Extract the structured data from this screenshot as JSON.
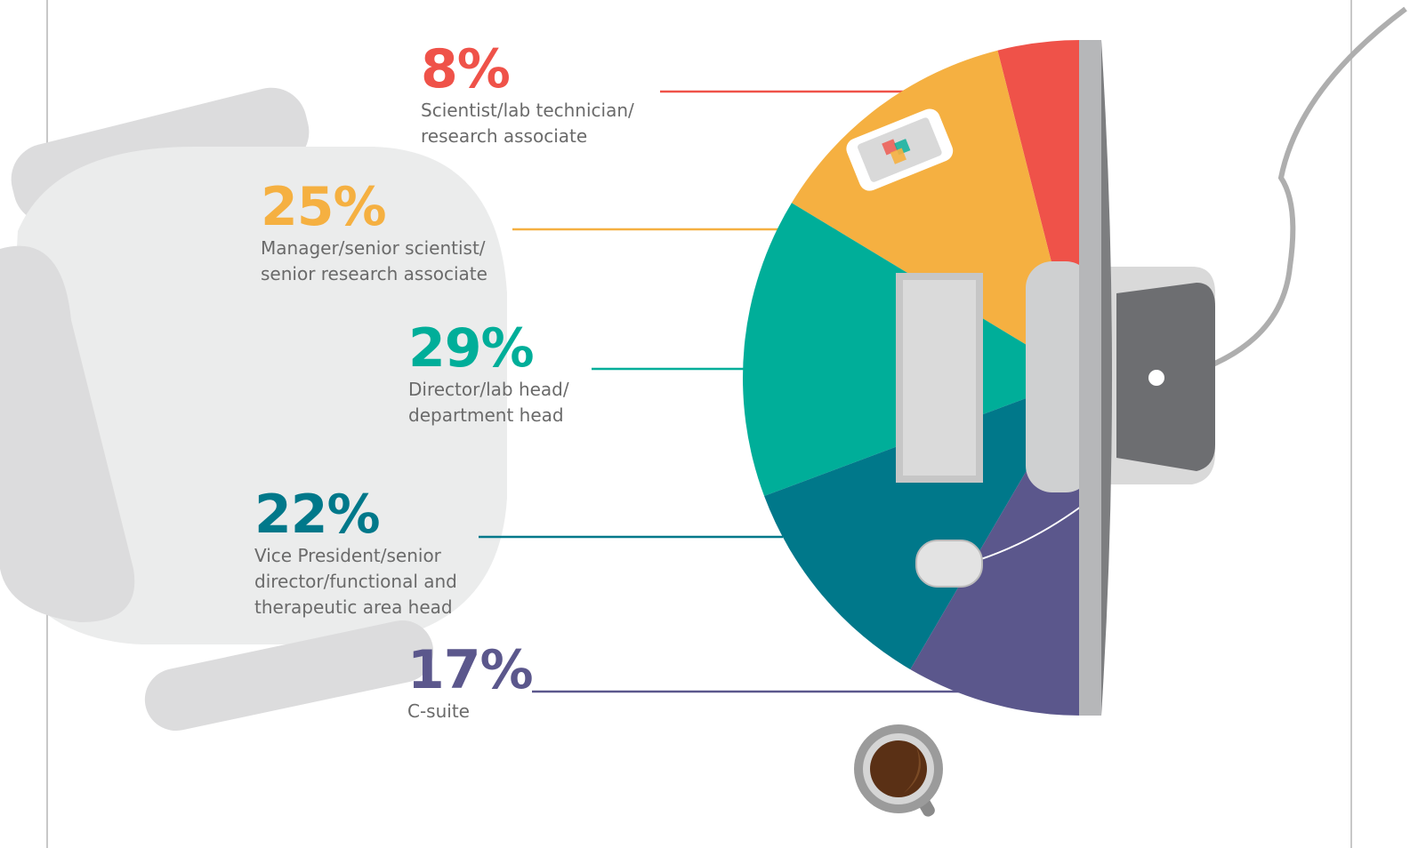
{
  "chart_data": {
    "type": "pie",
    "categories": [
      "Scientist/lab technician/\nresearch associate",
      "Manager/senior scientist/\nsenior research associate",
      "Director/lab head/\ndepartment head",
      "Vice President/senior\ndirector/functional and\ntherapeutic area head",
      "C-suite"
    ],
    "values": [
      8,
      25,
      29,
      22,
      17
    ],
    "value_labels": [
      "8%",
      "25%",
      "29%",
      "22%",
      "17%"
    ],
    "colors": [
      "#ef5249",
      "#f5b041",
      "#00ae99",
      "#00788a",
      "#5b578c"
    ]
  }
}
